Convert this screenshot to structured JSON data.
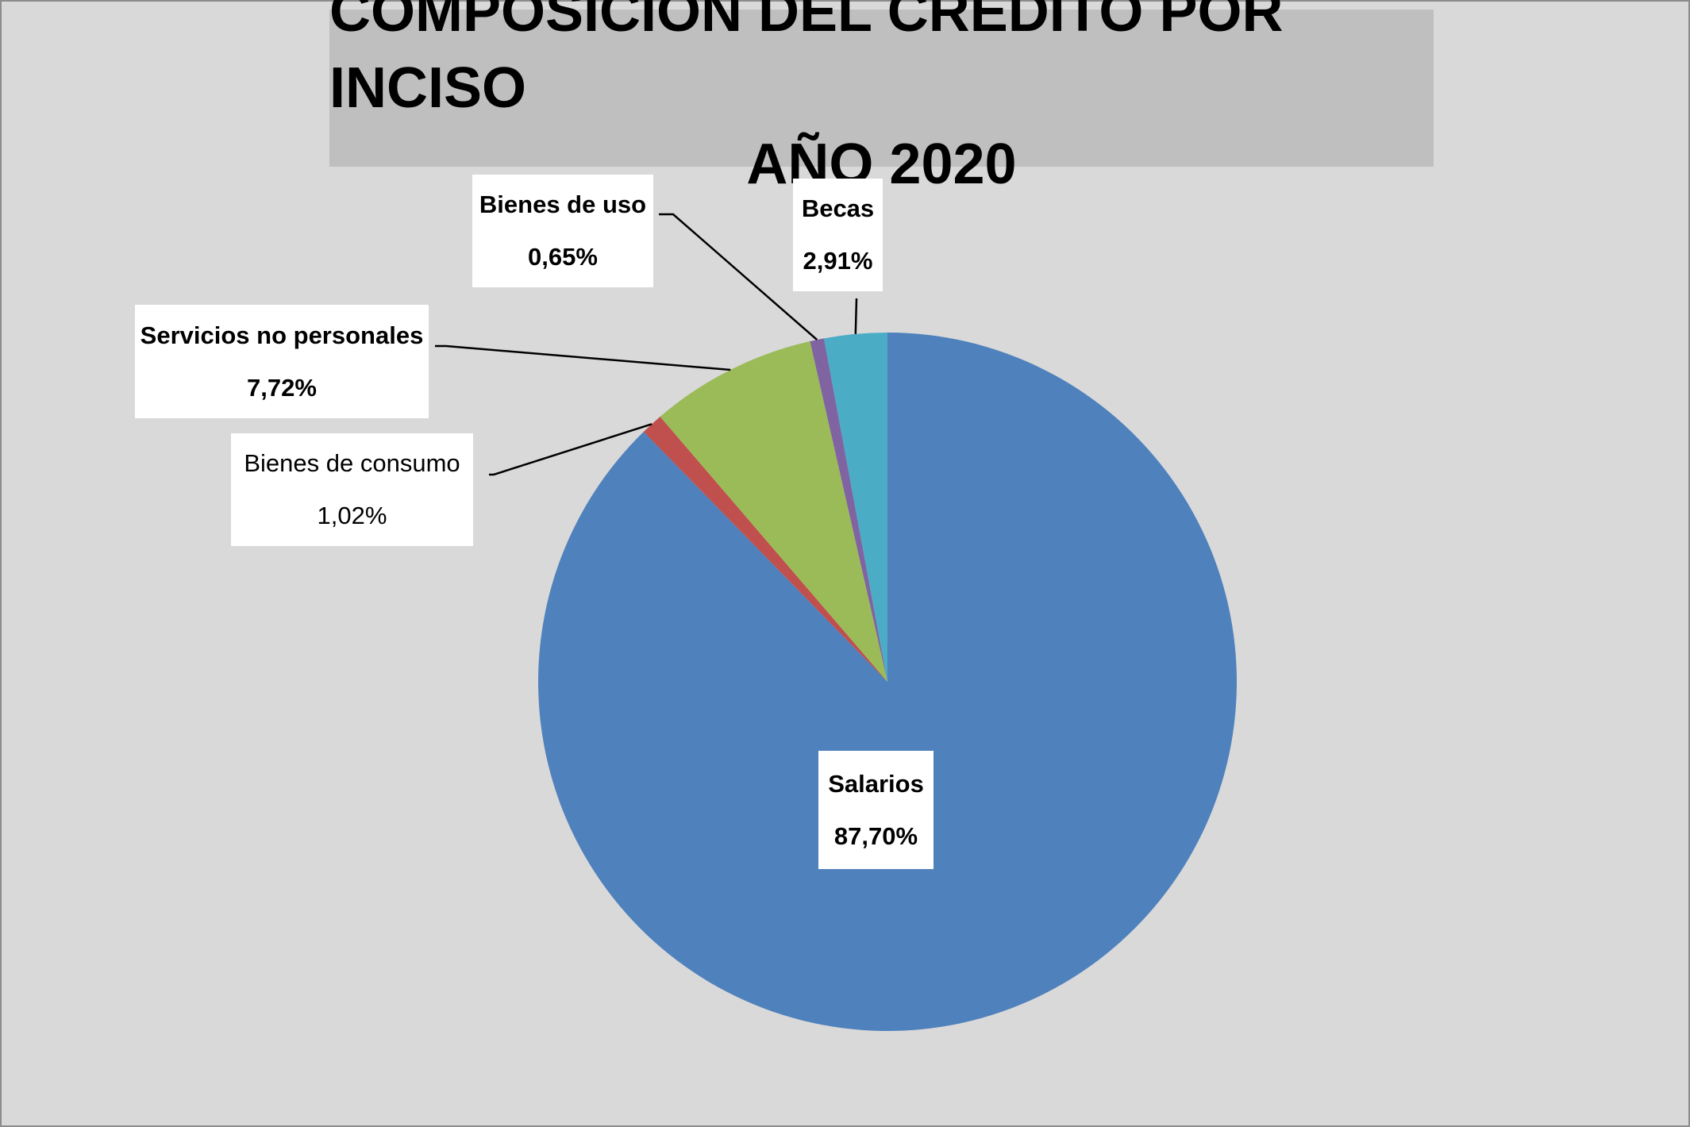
{
  "chart_data": {
    "type": "pie",
    "title": "COMPOSICIÓN DEL CRÉDITO POR INCISO",
    "subtitle": "AÑO 2020",
    "legend": "none",
    "start_angle_deg": 0,
    "direction": "clockwise",
    "slices": [
      {
        "label": "Salarios",
        "value": 87.7,
        "value_label": "87,70%",
        "color": "#4f81bd",
        "label_bold": true
      },
      {
        "label": "Bienes de consumo",
        "value": 1.02,
        "value_label": "1,02%",
        "color": "#c0504d",
        "label_bold": false
      },
      {
        "label": "Servicios no personales",
        "value": 7.72,
        "value_label": "7,72%",
        "color": "#9bbb59",
        "label_bold": true
      },
      {
        "label": "Bienes de uso",
        "value": 0.65,
        "value_label": "0,65%",
        "color": "#8064a2",
        "label_bold": true
      },
      {
        "label": "Becas",
        "value": 2.91,
        "value_label": "2,91%",
        "color": "#4bacc6",
        "label_bold": true
      }
    ]
  }
}
